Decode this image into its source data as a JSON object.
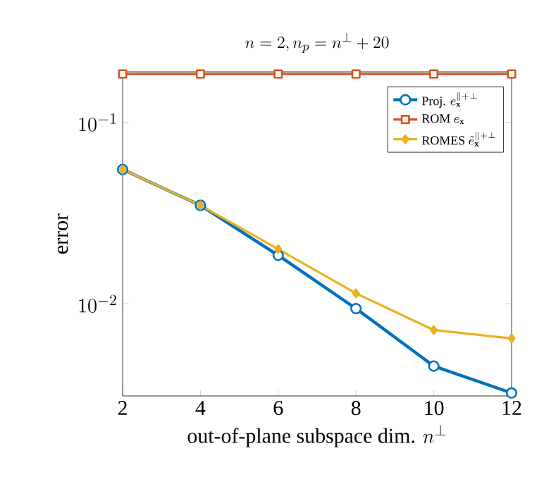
{
  "chart_data": {
    "type": "line",
    "title": "n = 2, n_p = n^\\perp + 20",
    "xlabel": "\\text{out-of-plane subspace dim. } n^\\perp",
    "ylabel": "error",
    "x": [
      2,
      4,
      6,
      8,
      10,
      12
    ],
    "series": [
      {
        "name": "\\text{Proj. } e_{\\mathbf{x}}^{\\|+\\perp}",
        "color": "#0072bd",
        "marker": "circle",
        "values": [
          0.055,
          0.0349,
          0.0185,
          0.0094,
          0.00453,
          0.00322
        ]
      },
      {
        "name": "\\text{ROM } e_{\\mathbf{x}}",
        "color": "#d95319",
        "marker": "square",
        "values": [
          0.185,
          0.185,
          0.185,
          0.185,
          0.185,
          0.185
        ]
      },
      {
        "name": "\\text{ROMES } \\tilde{e}_{\\mathbf{x}}^{\\|+\\perp}",
        "color": "#edb120",
        "marker": "diamond",
        "values": [
          0.055,
          0.0349,
          0.02,
          0.0114,
          0.00716,
          0.00644
        ]
      }
    ],
    "log": "y",
    "xlim": [
      2,
      12
    ],
    "ylim": [
      0.0031,
      0.19
    ],
    "xticks": [
      2,
      4,
      6,
      8,
      10,
      12
    ],
    "yticks": [
      {
        "value": 0.1,
        "label": "10^{-1}"
      },
      {
        "value": 0.01,
        "label": "10^{-2}"
      }
    ],
    "legend": "top right",
    "grid": false,
    "line_style": "solid"
  }
}
